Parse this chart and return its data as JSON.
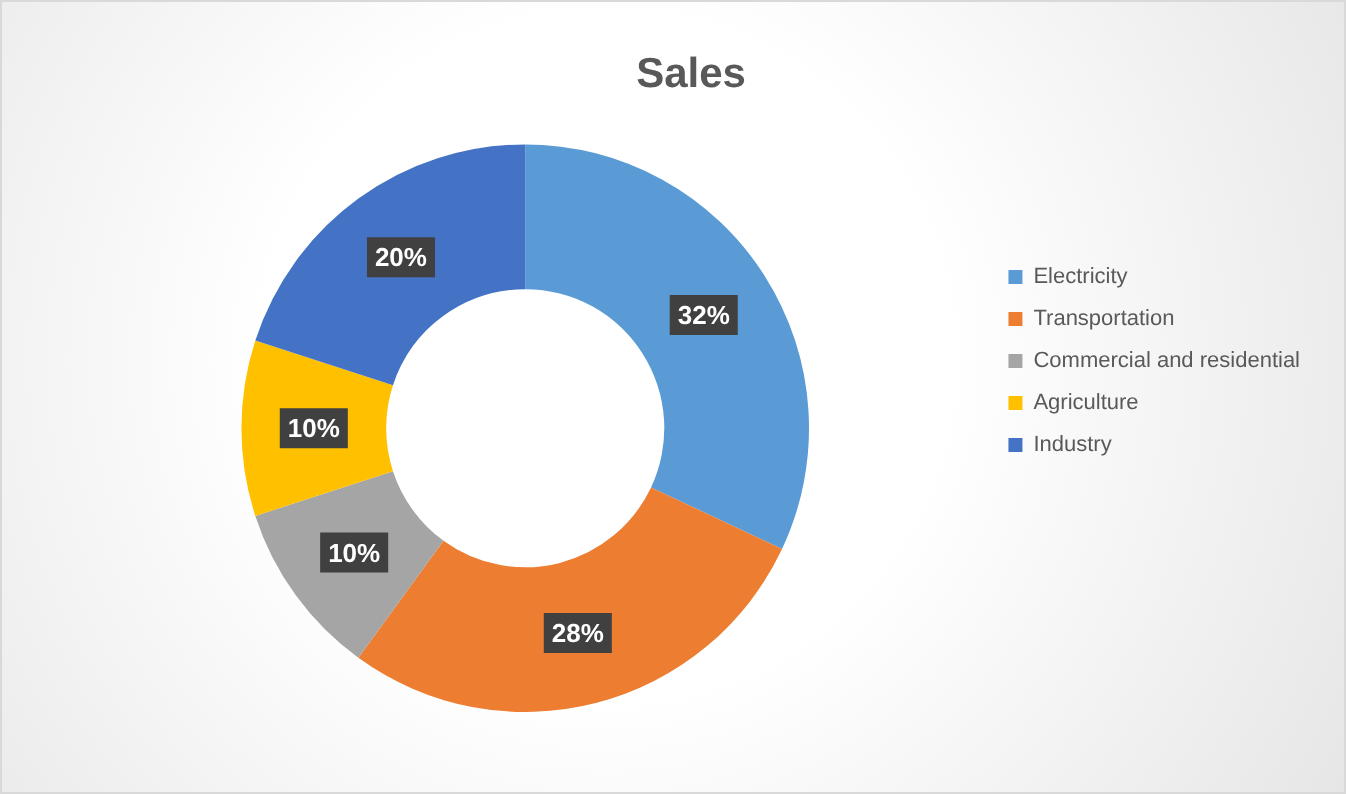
{
  "chart_data": {
    "type": "donut",
    "title": "Sales",
    "categories": [
      "Electricity",
      "Transportation",
      "Commercial and residential",
      "Agriculture",
      "Industry"
    ],
    "values": [
      32,
      28,
      10,
      10,
      20
    ],
    "colors": [
      "#5b9bd5",
      "#ed7d31",
      "#a5a5a5",
      "#ffc000",
      "#4472c4"
    ],
    "value_labels": [
      "32%",
      "28%",
      "10%",
      "10%",
      "20%"
    ],
    "legend": "right"
  }
}
